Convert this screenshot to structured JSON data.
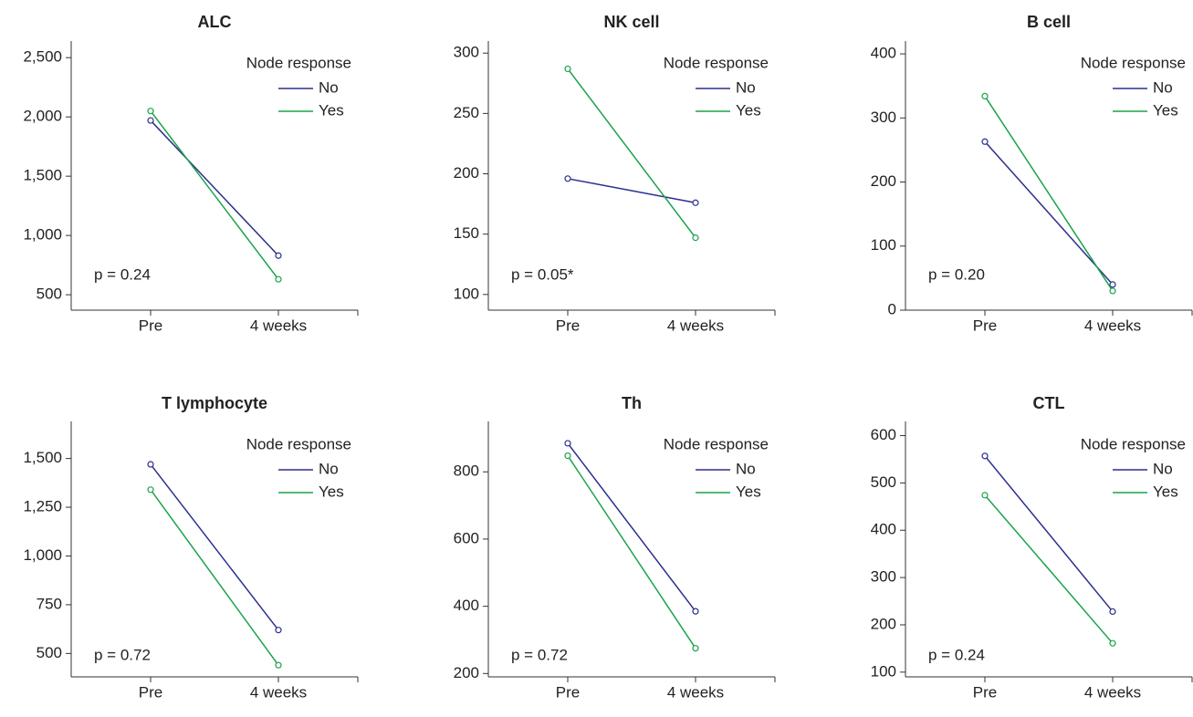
{
  "chart_data": [
    {
      "type": "line",
      "title": "ALC",
      "categories": [
        "Pre",
        "4 weeks"
      ],
      "legend_title": "Node response",
      "annotation": "p = 0.24",
      "series": [
        {
          "name": "No",
          "color": "#2b2f8c",
          "values": [
            1970,
            830
          ]
        },
        {
          "name": "Yes",
          "color": "#1aa34a",
          "values": [
            2050,
            630
          ]
        }
      ],
      "ylim": [
        370,
        2640
      ],
      "yticks": [
        500,
        {
          "value": 1000,
          "label": "1,000"
        },
        {
          "value": 1500,
          "label": "1,500"
        },
        {
          "value": 2000,
          "label": "2,000"
        },
        {
          "value": 2500,
          "label": "2,500"
        }
      ]
    },
    {
      "type": "line",
      "title": "NK cell",
      "categories": [
        "Pre",
        "4 weeks"
      ],
      "legend_title": "Node response",
      "annotation": "p = 0.05*",
      "series": [
        {
          "name": "No",
          "color": "#2b2f8c",
          "values": [
            196,
            176
          ]
        },
        {
          "name": "Yes",
          "color": "#1aa34a",
          "values": [
            287,
            147
          ]
        }
      ],
      "ylim": [
        87,
        310
      ],
      "yticks": [
        100,
        150,
        200,
        250,
        300
      ]
    },
    {
      "type": "line",
      "title": "B cell",
      "categories": [
        "Pre",
        "4 weeks"
      ],
      "legend_title": "Node response",
      "annotation": "p = 0.20",
      "series": [
        {
          "name": "No",
          "color": "#2b2f8c",
          "values": [
            263,
            40
          ]
        },
        {
          "name": "Yes",
          "color": "#1aa34a",
          "values": [
            334,
            30
          ]
        }
      ],
      "ylim": [
        0,
        420
      ],
      "yticks": [
        0,
        100,
        200,
        300,
        400
      ]
    },
    {
      "type": "line",
      "title": "T lymphocyte",
      "categories": [
        "Pre",
        "4 weeks"
      ],
      "legend_title": "Node response",
      "annotation": "p = 0.72",
      "series": [
        {
          "name": "No",
          "color": "#2b2f8c",
          "values": [
            1470,
            620
          ]
        },
        {
          "name": "Yes",
          "color": "#1aa34a",
          "values": [
            1340,
            440
          ]
        }
      ],
      "ylim": [
        380,
        1690
      ],
      "yticks": [
        500,
        750,
        {
          "value": 1000,
          "label": "1,000"
        },
        {
          "value": 1250,
          "label": "1,250"
        },
        {
          "value": 1500,
          "label": "1,500"
        }
      ]
    },
    {
      "type": "line",
      "title": "Th",
      "categories": [
        "Pre",
        "4 weeks"
      ],
      "legend_title": "Node response",
      "annotation": "p = 0.72",
      "series": [
        {
          "name": "No",
          "color": "#2b2f8c",
          "values": [
            885,
            385
          ]
        },
        {
          "name": "Yes",
          "color": "#1aa34a",
          "values": [
            848,
            275
          ]
        }
      ],
      "ylim": [
        190,
        950
      ],
      "yticks": [
        200,
        400,
        600,
        800
      ]
    },
    {
      "type": "line",
      "title": "CTL",
      "categories": [
        "Pre",
        "4 weeks"
      ],
      "legend_title": "Node response",
      "annotation": "p = 0.24",
      "series": [
        {
          "name": "No",
          "color": "#2b2f8c",
          "values": [
            557,
            228
          ]
        },
        {
          "name": "Yes",
          "color": "#1aa34a",
          "values": [
            474,
            161
          ]
        }
      ],
      "ylim": [
        90,
        630
      ],
      "yticks": [
        100,
        200,
        300,
        400,
        500,
        600
      ]
    }
  ]
}
